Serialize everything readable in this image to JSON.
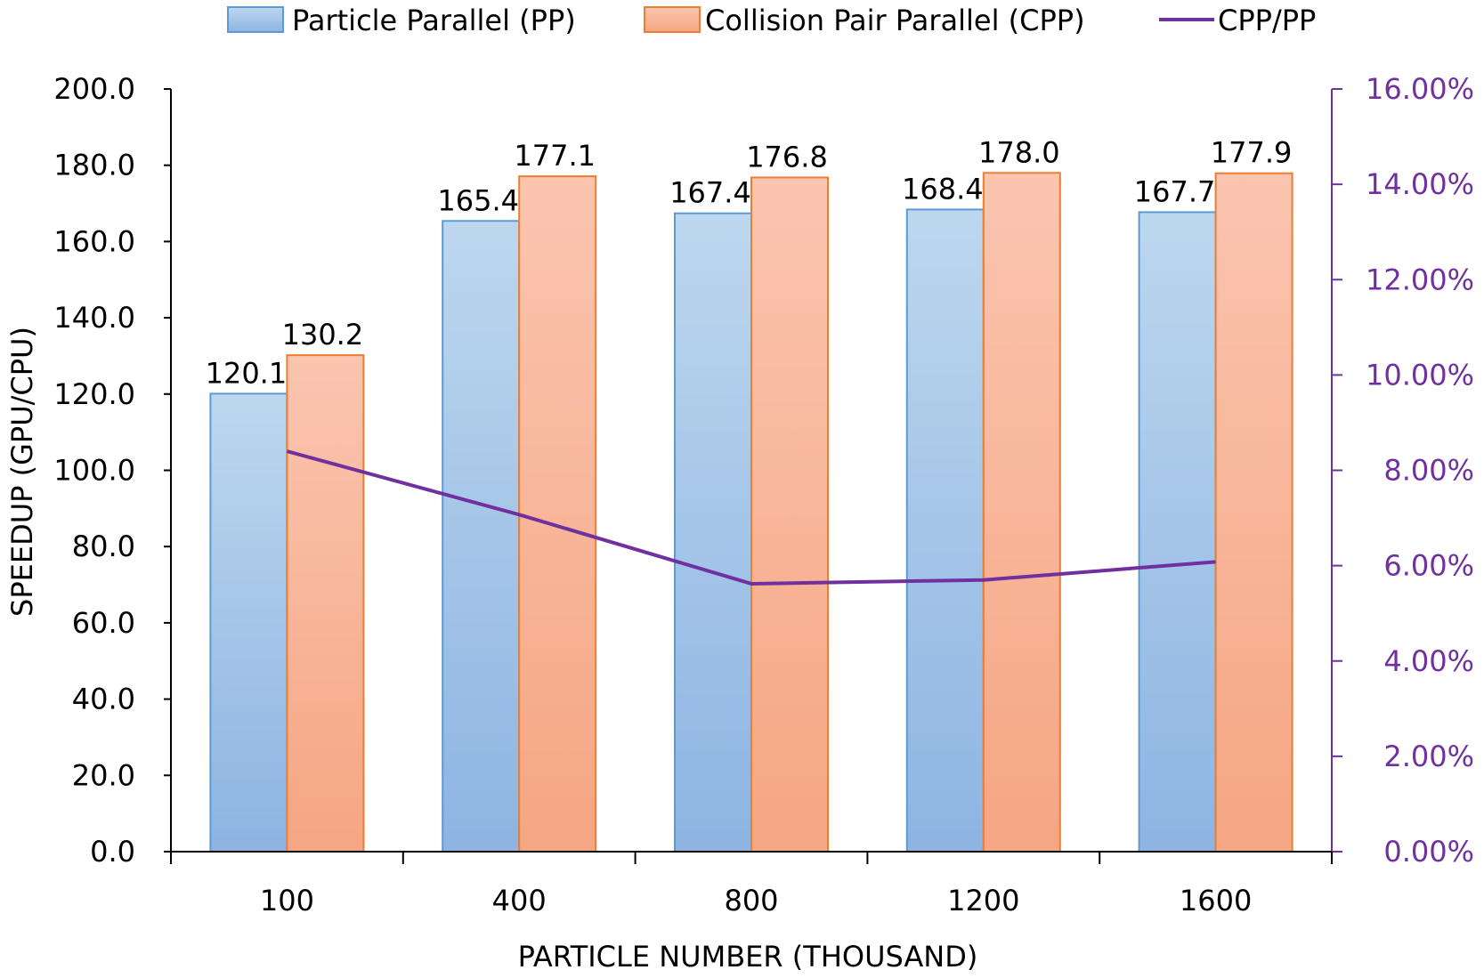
{
  "chart_data": {
    "type": "bar",
    "categories": [
      "100",
      "400",
      "800",
      "1200",
      "1600"
    ],
    "series": [
      {
        "name": "Particle Parallel (PP)",
        "kind": "bar",
        "axis": "left",
        "values": [
          120.1,
          165.4,
          167.4,
          168.4,
          167.7
        ],
        "labels": [
          "120.1",
          "165.4",
          "167.4",
          "168.4",
          "167.7"
        ],
        "color": "#9DC3E6",
        "border": "#5B9BD5"
      },
      {
        "name": "Collision Pair Parallel (CPP)",
        "kind": "bar",
        "axis": "left",
        "values": [
          130.2,
          177.1,
          176.8,
          178.0,
          177.9
        ],
        "labels": [
          "130.2",
          "177.1",
          "176.8",
          "178.0",
          "177.9"
        ],
        "color": "#F8B29A",
        "border": "#ED7D31"
      },
      {
        "name": "CPP/PP",
        "kind": "line",
        "axis": "right",
        "values": [
          0.084,
          0.0707,
          0.0562,
          0.057,
          0.0608
        ],
        "color": "#7030A0"
      }
    ],
    "xlabel": "PARTICLE NUMBER (THOUSAND)",
    "ylabel": "SPEEDUP (GPU/CPU)",
    "ylim": [
      0,
      200
    ],
    "y2lim": [
      0,
      0.16
    ],
    "yticks": [
      "0.0",
      "20.0",
      "40.0",
      "60.0",
      "80.0",
      "100.0",
      "120.0",
      "140.0",
      "160.0",
      "180.0",
      "200.0"
    ],
    "y2ticks": [
      "0.00%",
      "2.00%",
      "4.00%",
      "6.00%",
      "8.00%",
      "10.00%",
      "12.00%",
      "14.00%",
      "16.00%"
    ],
    "grid": false,
    "legend": "top"
  }
}
